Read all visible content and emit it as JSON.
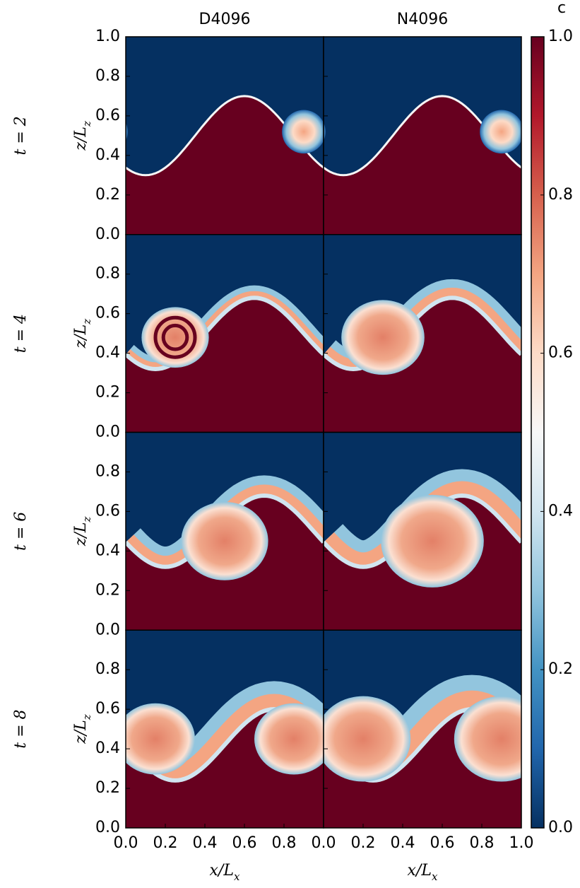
{
  "chart_data": {
    "type": "image-grid",
    "columns": [
      "D4096",
      "N4096"
    ],
    "rows": [
      "t = 2",
      "t = 4",
      "t = 6",
      "t = 8"
    ],
    "xlabel": "x/L_x",
    "ylabel": "z/L_z",
    "xlim": [
      0,
      1
    ],
    "xticks": [
      {
        "value": 0,
        "label": "0.0"
      },
      0.2,
      0.4,
      0.6,
      0.8,
      {
        "value": 1,
        "label": "1.0"
      }
    ],
    "ylim": [
      0,
      1
    ],
    "yticks": [
      {
        "value": 0,
        "label": "0.0"
      },
      0.2,
      0.4,
      0.6,
      0.8,
      {
        "value": 1,
        "label": "1.0"
      }
    ],
    "colorbar": {
      "label": "c",
      "lim": [
        0,
        1
      ],
      "ticks": [
        {
          "value": 0,
          "label": "0.0"
        },
        0.2,
        0.4,
        0.6,
        0.8,
        {
          "value": 1,
          "label": "1.0"
        }
      ],
      "colormap": "RdBu_r"
    }
  }
}
